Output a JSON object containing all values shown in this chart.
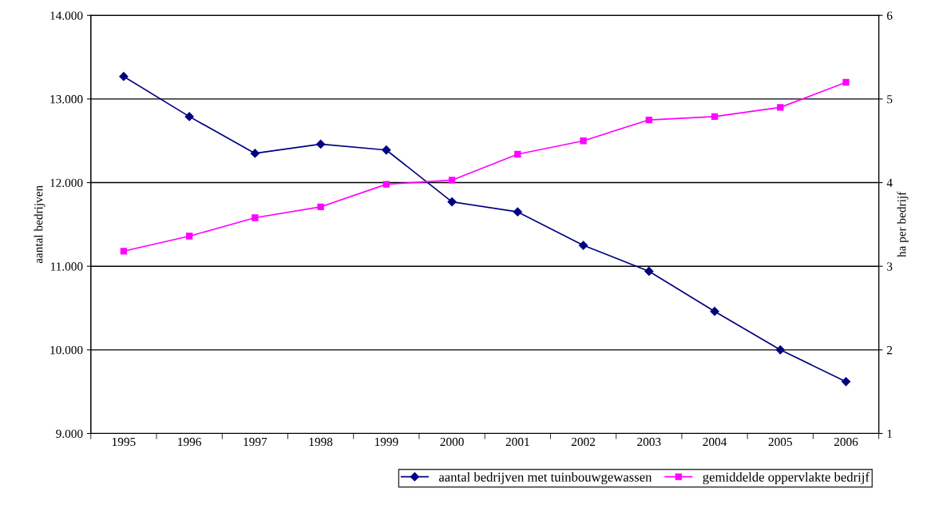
{
  "chart_data": {
    "type": "line",
    "categories": [
      "1995",
      "1996",
      "1997",
      "1998",
      "1999",
      "2000",
      "2001",
      "2002",
      "2003",
      "2004",
      "2005",
      "2006"
    ],
    "series": [
      {
        "name": "aantal bedrijven met tuinbouwgewassen",
        "color": "#000080",
        "marker": "diamond",
        "values": [
          13270,
          12790,
          12350,
          12460,
          12390,
          11770,
          11650,
          11250,
          10940,
          10460,
          10000,
          9620
        ]
      },
      {
        "name": "gemiddelde oppervlakte bedrijf",
        "color": "#ff00ff",
        "marker": "square",
        "axis": "y2",
        "values": [
          3.18,
          3.36,
          3.58,
          3.71,
          3.98,
          4.03,
          4.34,
          4.5,
          4.75,
          4.79,
          4.9,
          5.2
        ]
      }
    ],
    "ylabel": "aantal bedrijven",
    "y2label": "ha per bedrijf",
    "ylim": [
      9000,
      14000
    ],
    "yticks": [
      {
        "value": 9000,
        "label": "9.000"
      },
      {
        "value": 10000,
        "label": "10.000"
      },
      {
        "value": 11000,
        "label": "11.000"
      },
      {
        "value": 12000,
        "label": "12.000"
      },
      {
        "value": 13000,
        "label": "13.000"
      },
      {
        "value": 14000,
        "label": "14.000"
      }
    ],
    "y2lim": [
      1,
      6
    ],
    "y2ticks": [
      1,
      2,
      3,
      4,
      5,
      6
    ],
    "grid": "y",
    "legend": "bottom right",
    "line_style": "solid"
  }
}
